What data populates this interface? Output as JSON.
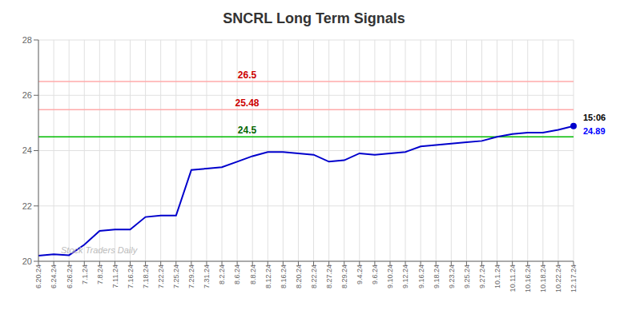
{
  "chart_data": {
    "type": "line",
    "title": "SNCRL Long Term Signals",
    "categories": [
      "6.20.24",
      "6.24.24",
      "6.26.24",
      "7.1.24",
      "7.8.24",
      "7.11.24",
      "7.16.24",
      "7.18.24",
      "7.22.24",
      "7.25.24",
      "7.29.24",
      "7.31.24",
      "8.2.24",
      "8.6.24",
      "8.8.24",
      "8.12.24",
      "8.16.24",
      "8.20.24",
      "8.22.24",
      "8.27.24",
      "8.29.24",
      "9.4.24",
      "9.6.24",
      "9.10.24",
      "9.12.24",
      "9.16.24",
      "9.18.24",
      "9.23.24",
      "9.25.24",
      "9.27.24",
      "10.1.24",
      "10.11.24",
      "10.16.24",
      "10.18.24",
      "10.22.24",
      "12.17.24"
    ],
    "values": [
      20.2,
      20.25,
      20.22,
      20.6,
      21.1,
      21.15,
      21.15,
      21.6,
      21.65,
      21.65,
      23.3,
      23.35,
      23.4,
      23.6,
      23.8,
      23.95,
      23.95,
      23.9,
      23.85,
      23.6,
      23.65,
      23.9,
      23.85,
      23.9,
      23.95,
      24.15,
      24.2,
      24.25,
      24.3,
      24.35,
      24.5,
      24.6,
      24.65,
      24.65,
      24.75,
      24.89
    ],
    "color": "#0000cc",
    "ylim": [
      20,
      28
    ],
    "yticks": [
      20,
      22,
      24,
      26,
      28
    ],
    "grid": true,
    "hlines": [
      {
        "value": 26.5,
        "label": "26.5",
        "color": "#ffaaaa",
        "label_color": "#cc0000"
      },
      {
        "value": 25.48,
        "label": "25.48",
        "color": "#ffaaaa",
        "label_color": "#cc0000"
      },
      {
        "value": 24.5,
        "label": "24.5",
        "color": "#00bb00",
        "label_color": "#006600"
      }
    ],
    "annotations": [
      {
        "text": "15:06",
        "color": "#000000"
      },
      {
        "text": "24.89",
        "color": "#0000ff"
      }
    ],
    "watermark": {
      "text": "Stock Traders Daily",
      "color": "#bbbbbb"
    }
  }
}
